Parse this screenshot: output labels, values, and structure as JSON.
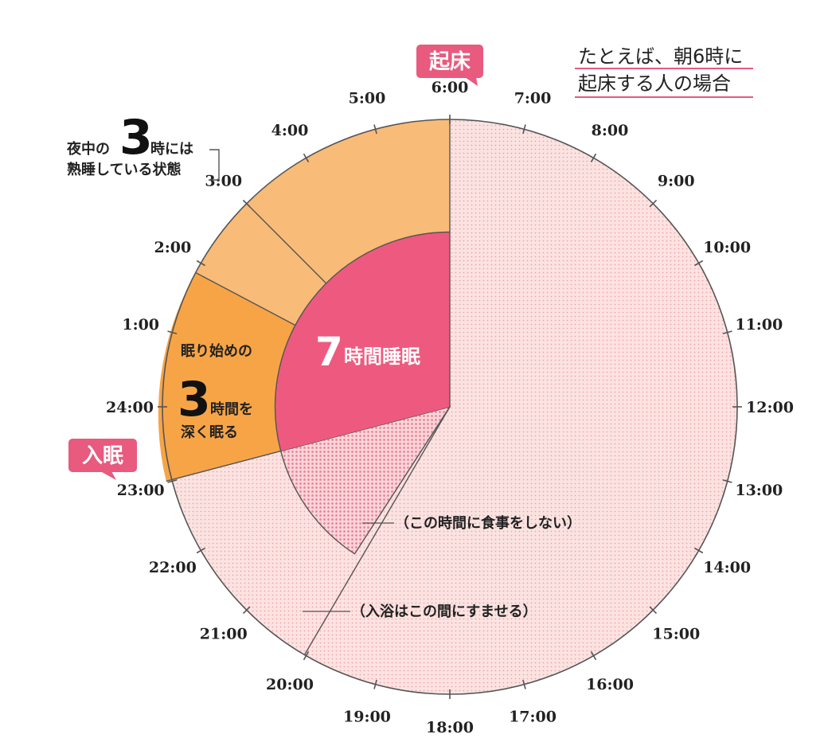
{
  "header_note": {
    "line1": "たとえば、朝6時に",
    "line2": "起床する人の場合"
  },
  "hours": [
    "6:00",
    "7:00",
    "8:00",
    "9:00",
    "10:00",
    "11:00",
    "12:00",
    "13:00",
    "14:00",
    "15:00",
    "16:00",
    "17:00",
    "18:00",
    "19:00",
    "20:00",
    "21:00",
    "22:00",
    "23:00",
    "24:00",
    "1:00",
    "2:00",
    "3:00",
    "4:00",
    "5:00"
  ],
  "wake_badge": "起床",
  "sleep_badge": "入眠",
  "three_am_note": {
    "prefix": "夜中の",
    "number": "3",
    "suffix": "時には",
    "line2": "熟睡している状態"
  },
  "center_label": {
    "number": "7",
    "text": "時間睡眠"
  },
  "deep_sleep": {
    "line1": "眠り始めの",
    "number": "3",
    "suffix": "時間を",
    "line3": "深く眠る"
  },
  "no_eat_note": "（この時間に食事をしない）",
  "bath_note": "（入浴はこの間にすませる）",
  "colors": {
    "accent_pink": "#e85a7e",
    "hour_pink": "#e0607e",
    "sleep_core": "#ee5a7f",
    "deep_orange": "#f7a447",
    "light_orange": "#f8bb78",
    "dotted_bg": "#fbe1df",
    "dot": "#ef8da0",
    "line": "#555555"
  }
}
